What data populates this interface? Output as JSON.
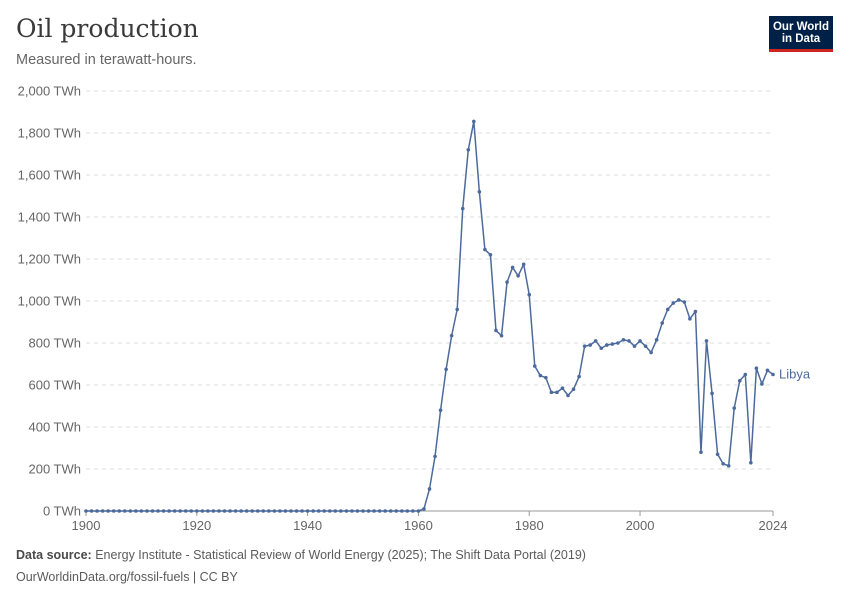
{
  "header": {
    "title": "Oil production",
    "subtitle": "Measured in terawatt-hours.",
    "logo_line1": "Our World",
    "logo_line2": "in Data"
  },
  "footer": {
    "source_label": "Data source:",
    "source_text": "Energy Institute - Statistical Review of World Energy (2025); The Shift Data Portal (2019)",
    "url_text": "OurWorldinData.org/fossil-fuels | CC BY"
  },
  "chart_data": {
    "type": "line",
    "title": "Oil production",
    "subtitle": "Measured in terawatt-hours.",
    "ylim": [
      0,
      2000
    ],
    "xlim": [
      1900,
      2024
    ],
    "y_ticks": [
      0,
      200,
      400,
      600,
      800,
      1000,
      1200,
      1400,
      1600,
      1800,
      2000
    ],
    "y_tick_labels": [
      "0 TWh",
      "200 TWh",
      "400 TWh",
      "600 TWh",
      "800 TWh",
      "1,000 TWh",
      "1,200 TWh",
      "1,400 TWh",
      "1,600 TWh",
      "1,800 TWh",
      "2,000 TWh"
    ],
    "x_ticks": [
      1900,
      1920,
      1940,
      1960,
      1980,
      2000,
      2024
    ],
    "x_tick_labels": [
      "1900",
      "1920",
      "1940",
      "1960",
      "1980",
      "2000",
      "2024"
    ],
    "grid": "horizontal dashed",
    "line_color": "#4c6a9c",
    "series": [
      {
        "name": "Libya",
        "x": [
          1900,
          1901,
          1902,
          1903,
          1904,
          1905,
          1906,
          1907,
          1908,
          1909,
          1910,
          1911,
          1912,
          1913,
          1914,
          1915,
          1916,
          1917,
          1918,
          1919,
          1920,
          1921,
          1922,
          1923,
          1924,
          1925,
          1926,
          1927,
          1928,
          1929,
          1930,
          1931,
          1932,
          1933,
          1934,
          1935,
          1936,
          1937,
          1938,
          1939,
          1940,
          1941,
          1942,
          1943,
          1944,
          1945,
          1946,
          1947,
          1948,
          1949,
          1950,
          1951,
          1952,
          1953,
          1954,
          1955,
          1956,
          1957,
          1958,
          1959,
          1960,
          1961,
          1962,
          1963,
          1964,
          1965,
          1966,
          1967,
          1968,
          1969,
          1970,
          1971,
          1972,
          1973,
          1974,
          1975,
          1976,
          1977,
          1978,
          1979,
          1980,
          1981,
          1982,
          1983,
          1984,
          1985,
          1986,
          1987,
          1988,
          1989,
          1990,
          1991,
          1992,
          1993,
          1994,
          1995,
          1996,
          1997,
          1998,
          1999,
          2000,
          2001,
          2002,
          2003,
          2004,
          2005,
          2006,
          2007,
          2008,
          2009,
          2010,
          2011,
          2012,
          2013,
          2014,
          2015,
          2016,
          2017,
          2018,
          2019,
          2020,
          2021,
          2022,
          2023,
          2024
        ],
        "values": [
          0,
          0,
          0,
          0,
          0,
          0,
          0,
          0,
          0,
          0,
          0,
          0,
          0,
          0,
          0,
          0,
          0,
          0,
          0,
          0,
          0,
          0,
          0,
          0,
          0,
          0,
          0,
          0,
          0,
          0,
          0,
          0,
          0,
          0,
          0,
          0,
          0,
          0,
          0,
          0,
          0,
          0,
          0,
          0,
          0,
          0,
          0,
          0,
          0,
          0,
          0,
          0,
          0,
          0,
          0,
          0,
          0,
          0,
          0,
          0,
          0,
          10,
          105,
          260,
          480,
          675,
          835,
          960,
          1440,
          1720,
          1855,
          1520,
          1245,
          1220,
          860,
          835,
          1090,
          1160,
          1120,
          1175,
          1030,
          690,
          645,
          635,
          565,
          565,
          585,
          550,
          580,
          640,
          785,
          790,
          810,
          775,
          790,
          795,
          800,
          815,
          810,
          785,
          810,
          785,
          755,
          815,
          895,
          960,
          990,
          1005,
          995,
          915,
          950,
          280,
          810,
          560,
          270,
          225,
          215,
          490,
          620,
          650,
          230,
          680,
          605,
          670,
          650
        ]
      }
    ],
    "annotations": [
      "Libya"
    ]
  }
}
